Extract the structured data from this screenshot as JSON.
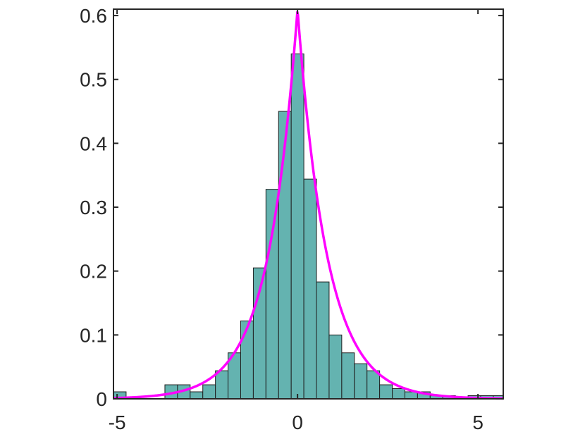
{
  "chart_data": {
    "type": "bar",
    "title": "",
    "xlabel": "",
    "ylabel": "",
    "xlim": [
      -5.1,
      5.7
    ],
    "ylim": [
      0,
      0.61
    ],
    "grid": false,
    "bin_width": 0.35,
    "bins": {
      "centers": [
        -4.925,
        -3.5,
        -3.15,
        -2.8,
        -2.45,
        -2.1,
        -1.75,
        -1.4,
        -1.05,
        -0.7,
        -0.35,
        0.0,
        0.35,
        0.7,
        1.05,
        1.4,
        1.75,
        2.1,
        2.45,
        2.8,
        3.15,
        3.5,
        3.85,
        4.2,
        4.55,
        4.9,
        5.25,
        5.6
      ],
      "values": [
        0.011,
        0.022,
        0.022,
        0.011,
        0.022,
        0.044,
        0.072,
        0.122,
        0.205,
        0.328,
        0.45,
        0.54,
        0.344,
        0.183,
        0.1,
        0.072,
        0.055,
        0.044,
        0.022,
        0.016,
        0.011,
        0.011,
        0.005,
        0.005,
        0.0,
        0.005,
        0.005,
        0.005
      ]
    },
    "series": [
      {
        "type": "line",
        "color": "#ff00ff",
        "function": "laplace",
        "mu": 0,
        "b": 0.82,
        "x_range": [
          -5.1,
          5.7
        ]
      }
    ],
    "x_ticks": [
      -5,
      0,
      5
    ],
    "x_tick_labels": [
      "-5",
      "0",
      "5"
    ],
    "y_ticks": [
      0,
      0.1,
      0.2,
      0.3,
      0.4,
      0.5,
      0.6
    ],
    "y_tick_labels": [
      "0",
      "0.1",
      "0.2",
      "0.3",
      "0.4",
      "0.5",
      "0.6"
    ],
    "colors": {
      "bar_fill": "#64b3b0",
      "bar_edge": "#1f1f1f",
      "curve": "#ff00ff",
      "axes": "#262626"
    }
  }
}
